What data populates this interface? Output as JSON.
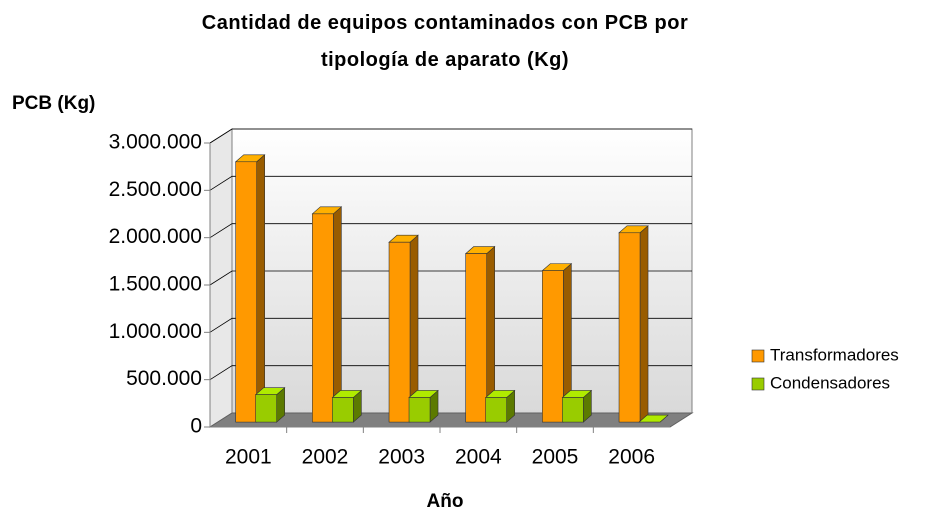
{
  "chart_data": {
    "type": "bar3d",
    "title": "Cantidad de equipos contaminados con PCB por tipología de aparato (Kg)",
    "y_label": "PCB (Kg)",
    "x_label": "Año",
    "categories": [
      "2001",
      "2002",
      "2003",
      "2004",
      "2005",
      "2006"
    ],
    "series": [
      {
        "name": "Transformadores",
        "color": "#ff9900",
        "values": [
          2750000,
          2200000,
          1900000,
          1780000,
          1600000,
          2000000
        ]
      },
      {
        "name": "Condensadores",
        "color": "#99cc00",
        "values": [
          290000,
          260000,
          260000,
          260000,
          260000,
          0
        ]
      }
    ],
    "ylim": [
      0,
      3000000
    ],
    "yticks": [
      0,
      {
        "value": 500000,
        "label": "500.000"
      },
      {
        "value": 1000000,
        "label": "1.000.000"
      },
      {
        "value": 1500000,
        "label": "1.500.000"
      },
      {
        "value": 2000000,
        "label": "2.000.000"
      },
      {
        "value": 2500000,
        "label": "2.500.000"
      },
      {
        "value": 3000000,
        "label": "3.000.000"
      }
    ],
    "grid": true,
    "legend": "right"
  }
}
